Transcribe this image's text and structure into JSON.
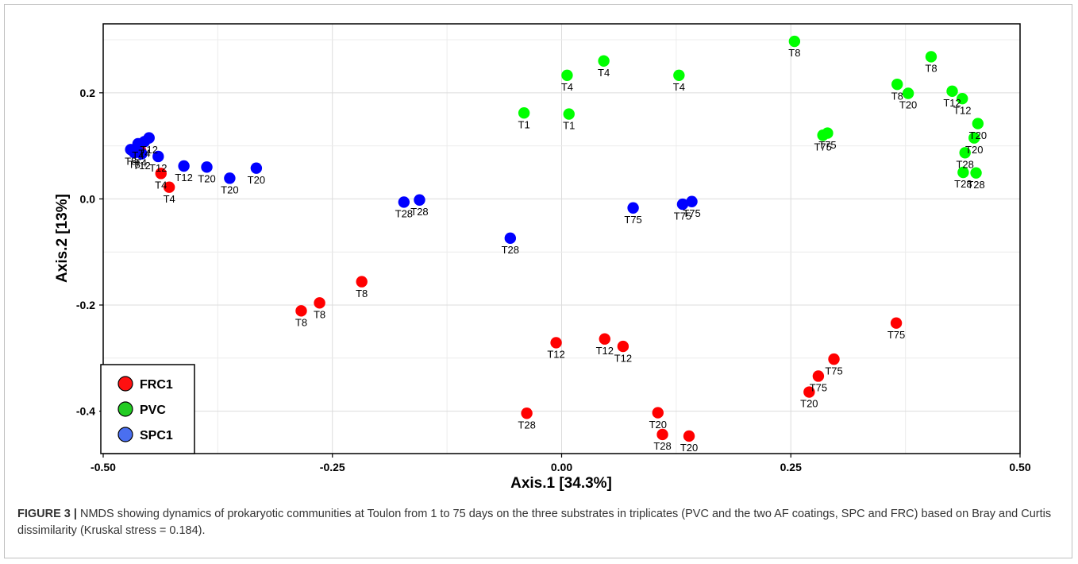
{
  "figure": {
    "caption_label": "FIGURE 3 |",
    "caption_text": " NMDS showing dynamics of prokaryotic communities at Toulon from 1 to 75 days on the three substrates in triplicates (PVC and the two AF coatings, SPC and FRC) based on Bray and Curtis dissimilarity (Kruskal stress = 0.184)."
  },
  "chart_data": {
    "type": "scatter",
    "xlabel": "Axis.1   [34.3%]",
    "ylabel": "Axis.2   [13%]",
    "xlim": [
      -0.5,
      0.5
    ],
    "ylim": [
      -0.48,
      0.33
    ],
    "xticks": [
      -0.5,
      -0.25,
      0.0,
      0.25,
      0.5
    ],
    "xtick_labels": [
      "-0.50",
      "-0.25",
      "0.00",
      "0.25",
      "0.50"
    ],
    "yticks": [
      -0.4,
      -0.2,
      0.0,
      0.2
    ],
    "ytick_labels": [
      "-0.4",
      "-0.2",
      "0.0",
      "0.2"
    ],
    "grid": true,
    "legend_position": "bottom-left",
    "series": [
      {
        "name": "FRC1",
        "color": "#ff0000",
        "points": [
          {
            "x": -0.459,
            "y": 0.09,
            "label": "T4"
          },
          {
            "x": -0.437,
            "y": 0.048,
            "label": "T4"
          },
          {
            "x": -0.428,
            "y": 0.022,
            "label": "T4"
          },
          {
            "x": -0.284,
            "y": -0.211,
            "label": "T8"
          },
          {
            "x": -0.264,
            "y": -0.196,
            "label": "T8"
          },
          {
            "x": -0.218,
            "y": -0.156,
            "label": "T8"
          },
          {
            "x": -0.006,
            "y": -0.271,
            "label": "T12"
          },
          {
            "x": 0.047,
            "y": -0.264,
            "label": "T12"
          },
          {
            "x": 0.067,
            "y": -0.278,
            "label": "T12"
          },
          {
            "x": -0.038,
            "y": -0.404,
            "label": "T28"
          },
          {
            "x": 0.11,
            "y": -0.444,
            "label": "T28"
          },
          {
            "x": 0.105,
            "y": -0.403,
            "label": "T20"
          },
          {
            "x": 0.139,
            "y": -0.447,
            "label": "T20"
          },
          {
            "x": 0.27,
            "y": -0.364,
            "label": "T20"
          },
          {
            "x": 0.28,
            "y": -0.334,
            "label": "T75"
          },
          {
            "x": 0.297,
            "y": -0.302,
            "label": "T75"
          },
          {
            "x": 0.365,
            "y": -0.234,
            "label": "T75"
          }
        ]
      },
      {
        "name": "PVC",
        "color": "#00ff00",
        "points": [
          {
            "x": -0.041,
            "y": 0.162,
            "label": "T1"
          },
          {
            "x": 0.008,
            "y": 0.16,
            "label": "T1"
          },
          {
            "x": 0.006,
            "y": 0.233,
            "label": "T4"
          },
          {
            "x": 0.046,
            "y": 0.26,
            "label": "T4"
          },
          {
            "x": 0.128,
            "y": 0.233,
            "label": "T4"
          },
          {
            "x": 0.254,
            "y": 0.297,
            "label": "T8"
          },
          {
            "x": 0.403,
            "y": 0.268,
            "label": "T8"
          },
          {
            "x": 0.366,
            "y": 0.216,
            "label": "T8"
          },
          {
            "x": 0.378,
            "y": 0.199,
            "label": "T20"
          },
          {
            "x": 0.426,
            "y": 0.203,
            "label": "T12"
          },
          {
            "x": 0.437,
            "y": 0.189,
            "label": "T12"
          },
          {
            "x": 0.285,
            "y": 0.12,
            "label": "T75"
          },
          {
            "x": 0.29,
            "y": 0.124,
            "label": "T75"
          },
          {
            "x": 0.454,
            "y": 0.142,
            "label": "T20"
          },
          {
            "x": 0.45,
            "y": 0.115,
            "label": "T20"
          },
          {
            "x": 0.44,
            "y": 0.087,
            "label": "T28"
          },
          {
            "x": 0.438,
            "y": 0.05,
            "label": "T28"
          },
          {
            "x": 0.452,
            "y": 0.049,
            "label": "T28"
          }
        ]
      },
      {
        "name": "SPC1",
        "color": "#0000ff",
        "points": [
          {
            "x": -0.47,
            "y": 0.093,
            "label": "T8"
          },
          {
            "x": -0.466,
            "y": 0.087,
            "label": "T8"
          },
          {
            "x": -0.462,
            "y": 0.104,
            "label": "T4"
          },
          {
            "x": -0.458,
            "y": 0.085,
            "label": "T12"
          },
          {
            "x": -0.455,
            "y": 0.108,
            "label": "T4"
          },
          {
            "x": -0.45,
            "y": 0.115,
            "label": "T12"
          },
          {
            "x": -0.44,
            "y": 0.08,
            "label": "T12"
          },
          {
            "x": -0.412,
            "y": 0.062,
            "label": "T12"
          },
          {
            "x": -0.387,
            "y": 0.06,
            "label": "T20"
          },
          {
            "x": -0.362,
            "y": 0.039,
            "label": "T20"
          },
          {
            "x": -0.333,
            "y": 0.058,
            "label": "T20"
          },
          {
            "x": -0.172,
            "y": -0.006,
            "label": "T28"
          },
          {
            "x": -0.155,
            "y": -0.002,
            "label": "T28"
          },
          {
            "x": -0.056,
            "y": -0.074,
            "label": "T28"
          },
          {
            "x": 0.078,
            "y": -0.017,
            "label": "T75"
          },
          {
            "x": 0.132,
            "y": -0.01,
            "label": "T75"
          },
          {
            "x": 0.142,
            "y": -0.005,
            "label": "T75"
          }
        ]
      }
    ]
  }
}
